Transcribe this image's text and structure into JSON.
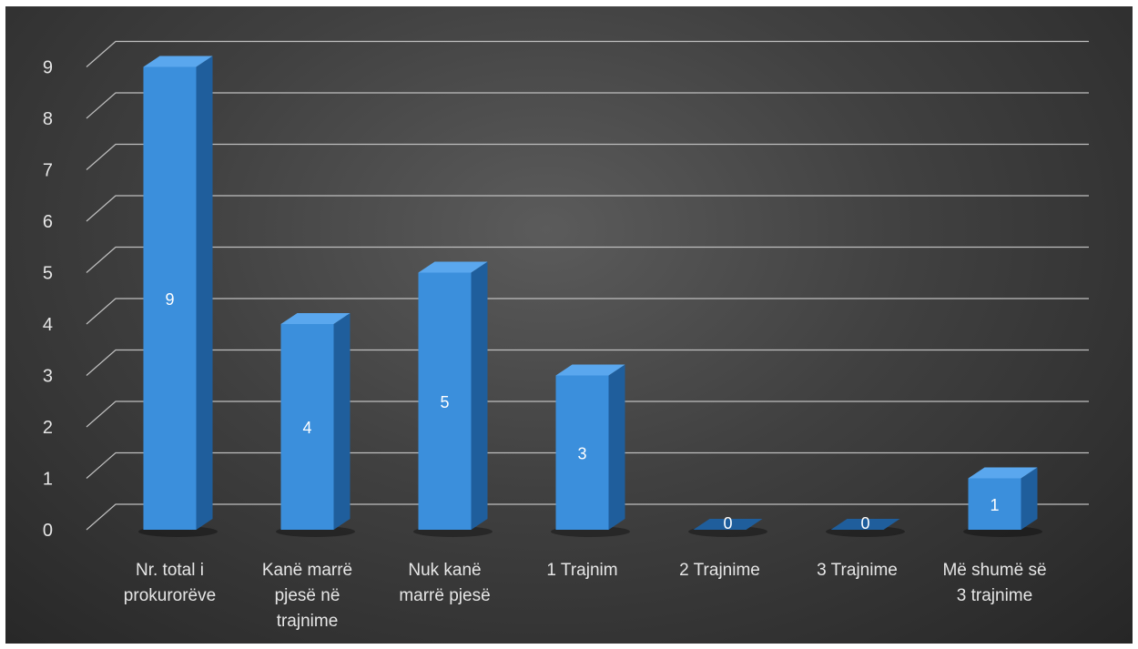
{
  "chart_data": {
    "type": "bar",
    "style": "3d-column",
    "categories": [
      [
        "Nr. total i",
        "prokurorëve"
      ],
      [
        "Kanë marrë",
        "pjesë në",
        "trajnime"
      ],
      [
        "Nuk kanë",
        "marrë pjesë"
      ],
      [
        "1 Trajnim"
      ],
      [
        "2 Trajnime"
      ],
      [
        "3 Trajnime"
      ],
      [
        "Më shumë së",
        "3 trajnime"
      ]
    ],
    "values": [
      9,
      4,
      5,
      3,
      0,
      0,
      1
    ],
    "data_labels": [
      "9",
      "4",
      "5",
      "3",
      "0",
      "0",
      "1"
    ],
    "y_ticks": [
      "0",
      "1",
      "2",
      "3",
      "4",
      "5",
      "6",
      "7",
      "8",
      "9"
    ],
    "ylim": [
      0,
      9
    ],
    "grid": true,
    "legend": "none",
    "title": "",
    "xlabel": "",
    "ylabel": "",
    "colors": {
      "bar_front": "#3b8fdc",
      "bar_side": "#1f5e9c",
      "bar_top": "#5aa7ee",
      "grid": "#bfbfbf",
      "text": "#e6e6e6"
    }
  }
}
